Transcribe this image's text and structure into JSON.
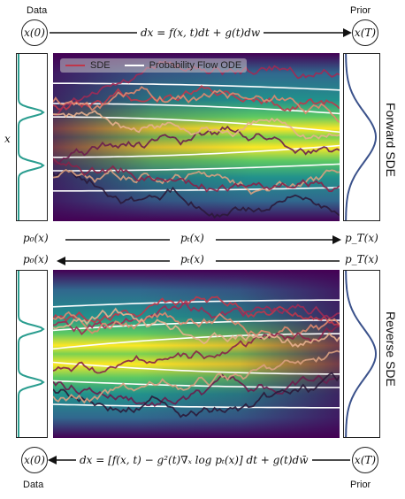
{
  "top": {
    "data_label": "Data",
    "prior_label": "Prior",
    "start_node": "x(0)",
    "end_node": "x(T)",
    "equation": "dx = f(x, t)dt + g(t)dw"
  },
  "bottom": {
    "data_label": "Data",
    "prior_label": "Prior",
    "start_node": "x(0)",
    "end_node": "x(T)",
    "equation": "dx = [f(x, t) − g²(t)∇ₓ log pₜ(x)] dt + g(t)dw̄"
  },
  "forward_panel": {
    "title": "Forward SDE",
    "y_axis_label": "x",
    "legend": {
      "sde": "SDE",
      "ode": "Probability Flow ODE"
    }
  },
  "reverse_panel": {
    "title": "Reverse SDE"
  },
  "middle": {
    "row1": {
      "left": "p₀(x)",
      "center": "pₜ(x)",
      "right": "p_T(x)"
    },
    "row2": {
      "left": "p₀(x)",
      "center": "pₜ(x)",
      "right": "p_T(x)"
    }
  },
  "colors": {
    "sde": "#c0364a",
    "ode": "#ffffff",
    "viridis_dark": "#440154",
    "viridis_mid": "#21918c",
    "viridis_bright": "#fde725"
  }
}
